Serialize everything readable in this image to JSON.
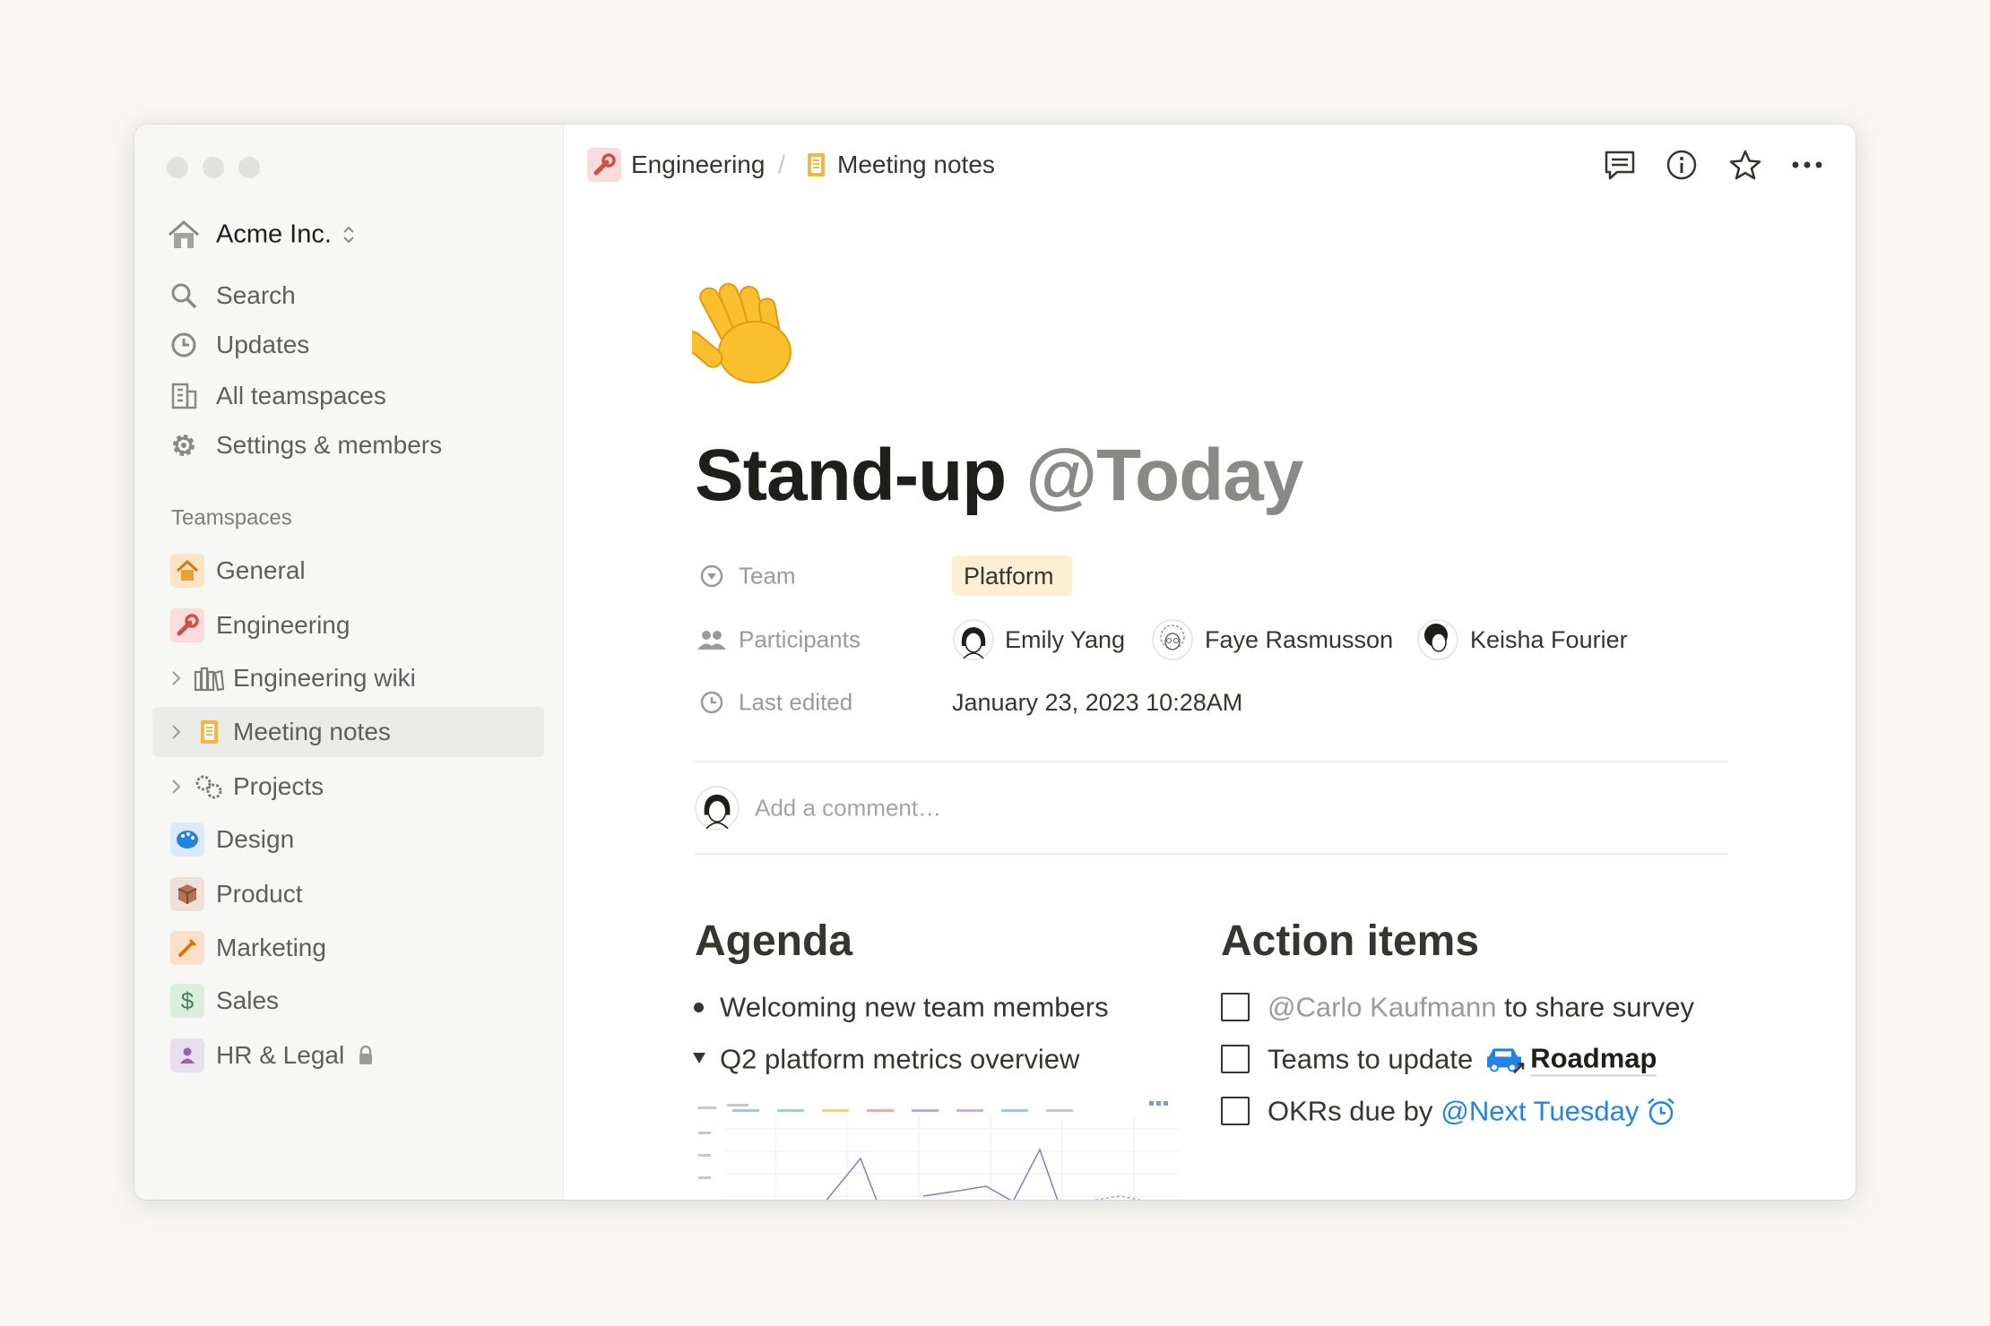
{
  "sidebar": {
    "workspace": "Acme Inc.",
    "nav": [
      "Search",
      "Updates",
      "All teamspaces",
      "Settings & members"
    ],
    "teamspaces_label": "Teamspaces",
    "teamspaces": [
      {
        "label": "General"
      },
      {
        "label": "Engineering"
      },
      {
        "label": "Engineering wiki"
      },
      {
        "label": "Meeting notes"
      },
      {
        "label": "Projects"
      },
      {
        "label": "Design"
      },
      {
        "label": "Product"
      },
      {
        "label": "Marketing"
      },
      {
        "label": "Sales",
        "icon": "$"
      },
      {
        "label": "HR & Legal"
      }
    ]
  },
  "breadcrumb": {
    "items": [
      "Engineering",
      "Meeting notes"
    ],
    "separator": "/"
  },
  "page": {
    "title": "Stand-up",
    "title_date": "@Today",
    "properties": [
      {
        "label": "Team",
        "value": "Platform"
      },
      {
        "label": "Participants",
        "people": [
          "Emily Yang",
          "Faye Rasmusson",
          "Keisha Fourier"
        ]
      },
      {
        "label": "Last edited",
        "value": "January 23, 2023 10:28AM"
      }
    ],
    "comment_placeholder": "Add a comment…",
    "agenda": {
      "heading": "Agenda",
      "items": [
        "Welcoming new team members",
        "Q2 platform metrics overview"
      ]
    },
    "action_items": {
      "heading": "Action items",
      "items": [
        {
          "mention": "@Carlo Kaufmann",
          "text": "to share survey"
        },
        {
          "text": "Teams to update",
          "link": "Roadmap"
        },
        {
          "text": "OKRs due by",
          "date": "@Next Tuesday"
        }
      ]
    }
  }
}
